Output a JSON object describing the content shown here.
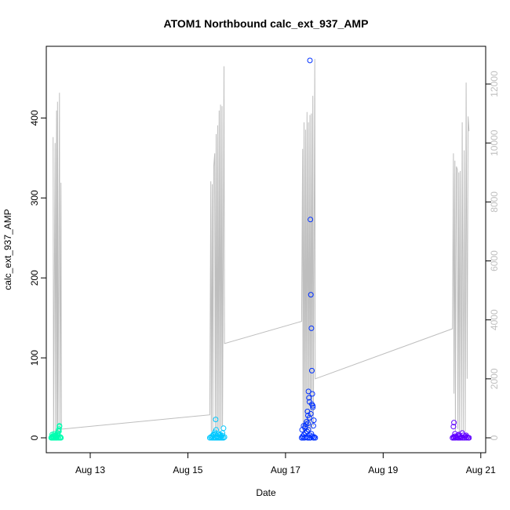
{
  "chart_data": {
    "type": "scatter",
    "title": "ATOM1 Northbound calc_ext_937_AMP",
    "xlabel": "Date",
    "ylabel": "calc_ext_937_AMP",
    "x_tick_labels": [
      "Aug 13",
      "Aug 15",
      "Aug 17",
      "Aug 19",
      "Aug 21"
    ],
    "x_tick_values": [
      13,
      15,
      17,
      19,
      21
    ],
    "xlim": [
      12.1,
      21.1
    ],
    "y_left_ticks": [
      0,
      100,
      200,
      300,
      400
    ],
    "y_left_range": [
      0,
      472
    ],
    "y_right_ticks": [
      0,
      2000,
      4000,
      6000,
      8000,
      10000,
      12000
    ],
    "y_right_range": [
      0,
      12800
    ],
    "secondary_series_color": "#bebebe",
    "point_colors": {
      "aug12": "#00ffb0",
      "aug15": "#00c8ff",
      "aug17": "#0030ff",
      "aug20": "#6000ff"
    },
    "line_series": [
      {
        "x": 12.24,
        "y": 10200
      },
      {
        "x": 12.25,
        "y": 120
      },
      {
        "x": 12.28,
        "y": 10000
      },
      {
        "x": 12.29,
        "y": 200
      },
      {
        "x": 12.31,
        "y": 11100
      },
      {
        "x": 12.32,
        "y": 100
      },
      {
        "x": 12.33,
        "y": 11400
      },
      {
        "x": 12.34,
        "y": 50
      },
      {
        "x": 12.37,
        "y": 11700
      },
      {
        "x": 12.38,
        "y": 80
      },
      {
        "x": 12.4,
        "y": 8650
      },
      {
        "x": 12.41,
        "y": 300
      },
      {
        "x": 12.45,
        "y": 300
      },
      {
        "x": 15.45,
        "y": 780
      },
      {
        "x": 15.47,
        "y": 8700
      },
      {
        "x": 15.48,
        "y": 200
      },
      {
        "x": 15.5,
        "y": 8600
      },
      {
        "x": 15.51,
        "y": 150
      },
      {
        "x": 15.53,
        "y": 9200
      },
      {
        "x": 15.55,
        "y": 9650
      },
      {
        "x": 15.56,
        "y": 300
      },
      {
        "x": 15.58,
        "y": 10300
      },
      {
        "x": 15.59,
        "y": 200
      },
      {
        "x": 15.61,
        "y": 10600
      },
      {
        "x": 15.62,
        "y": 250
      },
      {
        "x": 15.64,
        "y": 11100
      },
      {
        "x": 15.65,
        "y": 200
      },
      {
        "x": 15.67,
        "y": 11300
      },
      {
        "x": 15.68,
        "y": 300
      },
      {
        "x": 15.7,
        "y": 11250
      },
      {
        "x": 15.71,
        "y": 400
      },
      {
        "x": 15.74,
        "y": 12600
      },
      {
        "x": 15.75,
        "y": 3200
      },
      {
        "x": 17.33,
        "y": 3950
      },
      {
        "x": 17.35,
        "y": 9800
      },
      {
        "x": 17.36,
        "y": 200
      },
      {
        "x": 17.38,
        "y": 10700
      },
      {
        "x": 17.39,
        "y": 150
      },
      {
        "x": 17.41,
        "y": 10450
      },
      {
        "x": 17.42,
        "y": 200
      },
      {
        "x": 17.44,
        "y": 11050
      },
      {
        "x": 17.45,
        "y": 250
      },
      {
        "x": 17.47,
        "y": 10700
      },
      {
        "x": 17.48,
        "y": 300
      },
      {
        "x": 17.5,
        "y": 10950
      },
      {
        "x": 17.51,
        "y": 200
      },
      {
        "x": 17.53,
        "y": 11000
      },
      {
        "x": 17.54,
        "y": 300
      },
      {
        "x": 17.56,
        "y": 11600
      },
      {
        "x": 17.57,
        "y": 400
      },
      {
        "x": 17.6,
        "y": 12850
      },
      {
        "x": 17.61,
        "y": 2000
      },
      {
        "x": 20.42,
        "y": 3700
      },
      {
        "x": 20.44,
        "y": 9650
      },
      {
        "x": 20.45,
        "y": 1500
      },
      {
        "x": 20.47,
        "y": 9400
      },
      {
        "x": 20.48,
        "y": 200
      },
      {
        "x": 20.5,
        "y": 9200
      },
      {
        "x": 20.52,
        "y": 9100
      },
      {
        "x": 20.53,
        "y": 300
      },
      {
        "x": 20.55,
        "y": 9000
      },
      {
        "x": 20.56,
        "y": 200
      },
      {
        "x": 20.58,
        "y": 9050
      },
      {
        "x": 20.6,
        "y": 200
      },
      {
        "x": 20.62,
        "y": 10700
      },
      {
        "x": 20.64,
        "y": 200
      },
      {
        "x": 20.66,
        "y": 9750
      },
      {
        "x": 20.68,
        "y": 200
      },
      {
        "x": 20.7,
        "y": 12050
      },
      {
        "x": 20.72,
        "y": 2000
      },
      {
        "x": 20.74,
        "y": 10900
      },
      {
        "x": 20.76,
        "y": 10400
      }
    ],
    "point_series": [
      {
        "group": "aug12",
        "x": [
          12.2,
          12.21,
          12.22,
          12.23,
          12.24,
          12.25,
          12.26,
          12.27,
          12.28,
          12.29,
          12.3,
          12.31,
          12.32,
          12.33,
          12.34,
          12.35,
          12.36,
          12.37,
          12.38,
          12.39,
          12.4,
          12.22,
          12.26,
          12.3,
          12.33,
          12.35,
          12.37,
          12.36
        ],
        "y": [
          0,
          1,
          0,
          2,
          0,
          1,
          0,
          3,
          0,
          1,
          0,
          2,
          0,
          1,
          4,
          0,
          8,
          15,
          0,
          1,
          0,
          4,
          5,
          3,
          6,
          9,
          14,
          11
        ]
      },
      {
        "group": "aug15",
        "x": [
          15.45,
          15.47,
          15.49,
          15.5,
          15.52,
          15.53,
          15.55,
          15.56,
          15.58,
          15.59,
          15.61,
          15.62,
          15.64,
          15.65,
          15.67,
          15.68,
          15.7,
          15.71,
          15.73,
          15.75,
          15.52,
          15.55,
          15.58,
          15.62,
          15.66,
          15.7,
          15.73,
          15.6,
          15.57
        ],
        "y": [
          0,
          1,
          0,
          2,
          0,
          3,
          0,
          5,
          0,
          2,
          0,
          1,
          0,
          3,
          0,
          2,
          0,
          6,
          0,
          1,
          4,
          7,
          10,
          5,
          4,
          3,
          12,
          2,
          23
        ]
      },
      {
        "group": "aug17",
        "x": [
          17.33,
          17.35,
          17.36,
          17.38,
          17.39,
          17.41,
          17.42,
          17.44,
          17.45,
          17.47,
          17.48,
          17.5,
          17.51,
          17.53,
          17.55,
          17.57,
          17.59,
          17.61,
          17.34,
          17.37,
          17.4,
          17.43,
          17.46,
          17.49,
          17.52,
          17.54,
          17.56,
          17.58,
          17.47,
          17.48,
          17.49,
          17.5,
          17.51,
          17.52,
          17.53,
          17.54,
          17.55,
          17.56,
          17.57,
          17.45,
          17.46,
          17.44,
          17.42,
          17.4
        ],
        "y": [
          0,
          2,
          0,
          4,
          0,
          6,
          1,
          8,
          0,
          10,
          0,
          3,
          0,
          5,
          2,
          0,
          1,
          0,
          10,
          15,
          12,
          20,
          18,
          25,
          30,
          42,
          38,
          22,
          58,
          50,
          45,
          472,
          273,
          179,
          137,
          84,
          55,
          40,
          15,
          33,
          28,
          8,
          17,
          14
        ]
      },
      {
        "group": "aug20",
        "x": [
          20.42,
          20.44,
          20.45,
          20.47,
          20.48,
          20.5,
          20.52,
          20.53,
          20.55,
          20.56,
          20.58,
          20.6,
          20.62,
          20.64,
          20.66,
          20.68,
          20.7,
          20.72,
          20.74,
          20.76,
          20.44,
          20.45,
          20.47,
          20.55,
          20.62,
          20.7
        ],
        "y": [
          0,
          1,
          0,
          2,
          0,
          1,
          0,
          3,
          0,
          2,
          0,
          1,
          0,
          3,
          0,
          2,
          0,
          1,
          0,
          0,
          14,
          19,
          5,
          4,
          6,
          3
        ]
      }
    ]
  }
}
